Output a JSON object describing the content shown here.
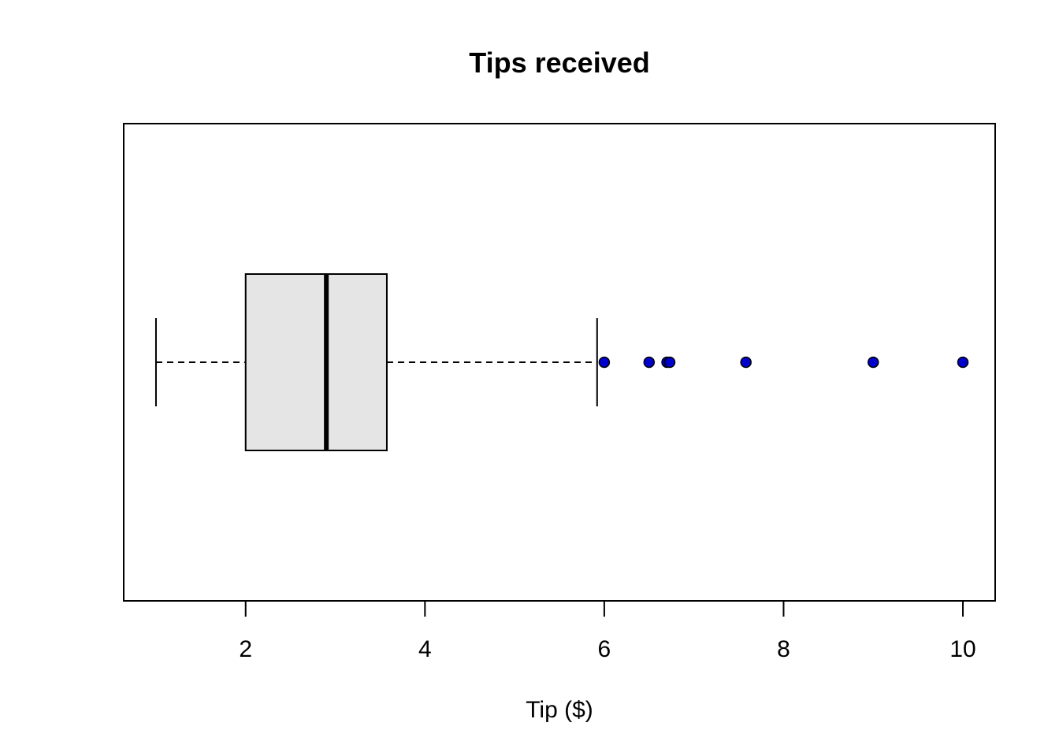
{
  "chart_data": {
    "type": "boxplot",
    "orientation": "horizontal",
    "title": "Tips received",
    "xlabel": "Tip ($)",
    "ylabel": "",
    "xlim": [
      0.64,
      10.36
    ],
    "xticks": [
      2,
      4,
      6,
      8,
      10
    ],
    "xtick_labels": [
      "2",
      "4",
      "6",
      "8",
      "10"
    ],
    "box": {
      "whisker_low": 1.0,
      "q1": 2.0,
      "median": 2.9,
      "q3": 3.575,
      "whisker_high": 5.92
    },
    "outliers": [
      6.0,
      6.5,
      6.7,
      6.73,
      7.58,
      9.0,
      10.0
    ],
    "box_fill": "#e5e5e5",
    "outlier_fill": "#0000cc",
    "grid": false,
    "legend": "none"
  }
}
